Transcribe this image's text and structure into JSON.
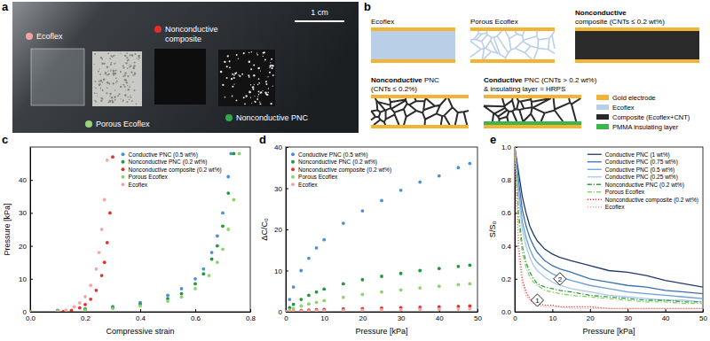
{
  "photo": {
    "panel_label": "a",
    "scale_bar": "1 cm",
    "samples": [
      {
        "label_lines": [
          "Ecoflex"
        ],
        "color": "#f4a3a3"
      },
      {
        "label_lines": [
          "Porous Ecoflex"
        ],
        "color": "#9ad67a"
      },
      {
        "label_lines": [
          "Nonconductive",
          "composite"
        ],
        "color": "#e82b2b"
      },
      {
        "label_lines": [
          "Nonconductive PNC"
        ],
        "color": "#2eaa4a"
      }
    ]
  },
  "diagram": {
    "panel_label": "b",
    "items": [
      {
        "lines": [
          [
            {
              "text": "Ecoflex"
            }
          ]
        ]
      },
      {
        "lines": [
          [
            {
              "text": "Porous Ecoflex"
            }
          ]
        ]
      },
      {
        "lines": [
          [
            {
              "text": "Nonconductive",
              "bold": true
            }
          ],
          [
            {
              "text": "composite (CNTs ≤ 0.2 wt%)"
            }
          ]
        ]
      },
      {
        "lines": [
          [
            {
              "text": "Nonconductive",
              "bold": true
            },
            {
              "text": " PNC"
            }
          ],
          [
            {
              "text": "(CNTs ≤ 0.2%)"
            }
          ]
        ]
      },
      {
        "lines": [
          [
            {
              "text": "Conductive",
              "bold": true
            },
            {
              "text": " PNC (CNTs > 0.2 wt%)"
            }
          ],
          [
            {
              "text": "& insulating layer = HRPS"
            }
          ]
        ]
      }
    ],
    "legend": [
      {
        "text": "Gold electrode",
        "color": "#f5b335"
      },
      {
        "text": "Ecoflex",
        "color": "#b9cfe8"
      },
      {
        "text": "Composite (Ecoflex+CNT)",
        "color": "#2a2a2a"
      },
      {
        "text": "PMMA insulating layer",
        "color": "#3cb54a"
      }
    ]
  },
  "chart_data": [
    {
      "type": "scatter",
      "panel_label": "c",
      "x_label": "Compressive strain",
      "y_label": "Pressure [kPa]",
      "marker": "circle",
      "legend": "top",
      "xlim": [
        0,
        0.8
      ],
      "xticks": [
        {
          "value": 0,
          "label": "0.0"
        },
        {
          "value": 0.2,
          "label": "0.2"
        },
        {
          "value": 0.4,
          "label": "0.4"
        },
        {
          "value": 0.6,
          "label": "0.6"
        },
        {
          "value": 0.8,
          "label": "0.8"
        }
      ],
      "ylim": [
        0,
        50
      ],
      "yticks": [
        0,
        10,
        20,
        30,
        40
      ],
      "series": [
        {
          "name": "Conductive PNC (0.5 wt%)",
          "color": "#4a90d9",
          "x": [
            0,
            0.1,
            0.2,
            0.3,
            0.4,
            0.5,
            0.55,
            0.6,
            0.63,
            0.66,
            0.68,
            0.7,
            0.72,
            0.73
          ],
          "values": [
            0,
            0.4,
            0.9,
            1.6,
            2.8,
            5,
            7,
            10,
            13,
            18,
            23,
            30,
            41,
            48
          ]
        },
        {
          "name": "Nonconductive PNC (0.2 wt%)",
          "color": "#1e9a3a",
          "x": [
            0,
            0.1,
            0.2,
            0.3,
            0.4,
            0.5,
            0.55,
            0.6,
            0.63,
            0.66,
            0.68,
            0.7,
            0.72,
            0.74
          ],
          "values": [
            0,
            0.3,
            0.7,
            1.3,
            2.3,
            4,
            5.5,
            8.5,
            11.5,
            16,
            20,
            26,
            36,
            48
          ]
        },
        {
          "name": "Nonconductive composite (0.2 wt%)",
          "color": "#e8302a",
          "x": [
            0.12,
            0.15,
            0.18,
            0.2,
            0.22,
            0.24,
            0.26,
            0.27,
            0.28,
            0.29,
            0.3
          ],
          "values": [
            0,
            0.4,
            1.2,
            2.2,
            3.8,
            6.5,
            11,
            15,
            21,
            30,
            47
          ]
        },
        {
          "name": "Porous Ecoflex",
          "color": "#8fd16b",
          "x": [
            0,
            0.1,
            0.2,
            0.3,
            0.4,
            0.5,
            0.55,
            0.6,
            0.65,
            0.68,
            0.7,
            0.72,
            0.74,
            0.76
          ],
          "values": [
            0,
            0.2,
            0.5,
            1,
            1.8,
            3.2,
            4.5,
            7,
            11,
            15,
            19,
            25,
            34,
            48
          ]
        },
        {
          "name": "Ecoflex",
          "color": "#f4a6a6",
          "x": [
            0.1,
            0.13,
            0.16,
            0.18,
            0.2,
            0.22,
            0.24,
            0.25,
            0.26,
            0.27,
            0.28
          ],
          "values": [
            0,
            0.5,
            1.5,
            2.7,
            4.6,
            8,
            13,
            18,
            25,
            34,
            46
          ]
        }
      ]
    },
    {
      "type": "scatter",
      "panel_label": "d",
      "x_label": "Pressure [kPa]",
      "y_label": "ΔC/C₀",
      "marker": "circle",
      "legend": "top-left",
      "xlim": [
        0,
        50
      ],
      "xticks": [
        0,
        10,
        20,
        30,
        40,
        50
      ],
      "ylim": [
        0,
        40
      ],
      "yticks": [
        0,
        10,
        20,
        30,
        40
      ],
      "x": [
        0,
        1,
        2,
        4,
        6,
        8,
        10,
        15,
        20,
        25,
        30,
        35,
        40,
        45,
        48
      ],
      "series": [
        {
          "name": "Conductive PNC (0.5 wt%)",
          "color": "#4a90d9",
          "values": [
            0,
            3,
            6,
            10,
            13,
            15.5,
            17.5,
            21.5,
            24.5,
            27,
            29.5,
            31.5,
            33,
            35,
            36
          ]
        },
        {
          "name": "Nonconductive PNC (0.2 wt%)",
          "color": "#1e9a3a",
          "values": [
            0,
            1,
            1.8,
            3,
            4,
            4.8,
            5.5,
            6.8,
            7.8,
            8.6,
            9.3,
            10,
            10.5,
            11,
            11.3
          ]
        },
        {
          "name": "Nonconductive composite (0.2 wt%)",
          "color": "#e8302a",
          "values": [
            0,
            0.1,
            0.2,
            0.3,
            0.4,
            0.5,
            0.55,
            0.7,
            0.8,
            0.9,
            1.0,
            1.1,
            1.2,
            1.3,
            1.4
          ]
        },
        {
          "name": "Porous Ecoflex",
          "color": "#8fd16b",
          "values": [
            0,
            0.4,
            0.8,
            1.4,
            1.9,
            2.3,
            2.7,
            3.5,
            4.2,
            4.8,
            5.3,
            5.8,
            6.2,
            6.6,
            6.8
          ]
        },
        {
          "name": "Ecoflex",
          "color": "#f4a6a6",
          "values": [
            0,
            0.05,
            0.1,
            0.15,
            0.2,
            0.25,
            0.3,
            0.35,
            0.4,
            0.45,
            0.5,
            0.55,
            0.6,
            0.65,
            0.7
          ]
        }
      ]
    },
    {
      "type": "line",
      "panel_label": "e",
      "x_label": "Pressure [kPa]",
      "y_label": "S/S₀",
      "legend": "top-right",
      "xlim": [
        0,
        50
      ],
      "xticks": [
        0,
        10,
        20,
        30,
        40,
        50
      ],
      "ylim": [
        0,
        1.0
      ],
      "yticks": [
        {
          "value": 0,
          "label": "0.0"
        },
        {
          "value": 0.2,
          "label": "0.2"
        },
        {
          "value": 0.4,
          "label": "0.4"
        },
        {
          "value": 0.6,
          "label": "0.6"
        },
        {
          "value": 0.8,
          "label": "0.8"
        },
        {
          "value": 1.0,
          "label": "1.0"
        }
      ],
      "x": [
        0,
        1,
        2,
        3,
        4,
        5,
        6,
        8,
        10,
        12,
        15,
        20,
        25,
        30,
        35,
        40,
        45,
        50
      ],
      "series": [
        {
          "name": "Conductive PNC (1 wt%)",
          "color": "#1f3a6e",
          "line_style": "solid",
          "values": [
            1.0,
            0.85,
            0.7,
            0.6,
            0.52,
            0.47,
            0.43,
            0.38,
            0.35,
            0.33,
            0.31,
            0.28,
            0.25,
            0.24,
            0.22,
            0.19,
            0.17,
            0.15
          ]
        },
        {
          "name": "Conductive PNC (0.75 wt%)",
          "color": "#3a6fb0",
          "line_style": "solid",
          "values": [
            1.0,
            0.8,
            0.62,
            0.52,
            0.45,
            0.4,
            0.36,
            0.31,
            0.28,
            0.26,
            0.24,
            0.2,
            0.18,
            0.16,
            0.15,
            0.13,
            0.12,
            0.11
          ]
        },
        {
          "name": "Conductive PNC (0.5 wt%)",
          "color": "#6c9fd8",
          "line_style": "solid",
          "values": [
            1.0,
            0.75,
            0.55,
            0.45,
            0.38,
            0.33,
            0.3,
            0.26,
            0.23,
            0.21,
            0.19,
            0.16,
            0.14,
            0.12,
            0.11,
            0.1,
            0.09,
            0.08
          ]
        },
        {
          "name": "Conductive PNC (0.25 wt%)",
          "color": "#a9c8ec",
          "line_style": "solid",
          "values": [
            1.0,
            0.7,
            0.5,
            0.4,
            0.33,
            0.28,
            0.25,
            0.21,
            0.18,
            0.16,
            0.14,
            0.12,
            0.1,
            0.09,
            0.08,
            0.07,
            0.07,
            0.06
          ]
        },
        {
          "name": "Nonconductive PNC (0.2 wt%)",
          "color": "#2e9e3e",
          "line_style": "dashdot",
          "values": [
            1.0,
            0.6,
            0.4,
            0.3,
            0.24,
            0.2,
            0.17,
            0.15,
            0.14,
            0.13,
            0.12,
            0.1,
            0.09,
            0.08,
            0.07,
            0.07,
            0.06,
            0.06
          ]
        },
        {
          "name": "Porous Ecoflex",
          "color": "#8fd06a",
          "line_style": "dashdot",
          "values": [
            1.0,
            0.55,
            0.36,
            0.27,
            0.21,
            0.18,
            0.16,
            0.13,
            0.12,
            0.11,
            0.1,
            0.09,
            0.08,
            0.07,
            0.06,
            0.06,
            0.05,
            0.05
          ]
        },
        {
          "name": "Nonconductive composite (0.2 wt%)",
          "color": "#e83030",
          "line_style": "dotted",
          "values": [
            1.0,
            0.4,
            0.2,
            0.12,
            0.08,
            0.06,
            0.05,
            0.04,
            0.04,
            0.03,
            0.03,
            0.03,
            0.02,
            0.02,
            0.02,
            0.02,
            0.02,
            0.02
          ]
        },
        {
          "name": "Ecoflex",
          "color": "#f6a0a0",
          "line_style": "dotted",
          "values": [
            1.0,
            0.35,
            0.17,
            0.1,
            0.07,
            0.05,
            0.04,
            0.03,
            0.03,
            0.03,
            0.02,
            0.02,
            0.02,
            0.02,
            0.02,
            0.02,
            0.02,
            0.02
          ]
        }
      ],
      "annotations": [
        {
          "text": "1",
          "x": 6,
          "y": 0.07
        },
        {
          "text": "2",
          "x": 12,
          "y": 0.2
        }
      ]
    }
  ]
}
